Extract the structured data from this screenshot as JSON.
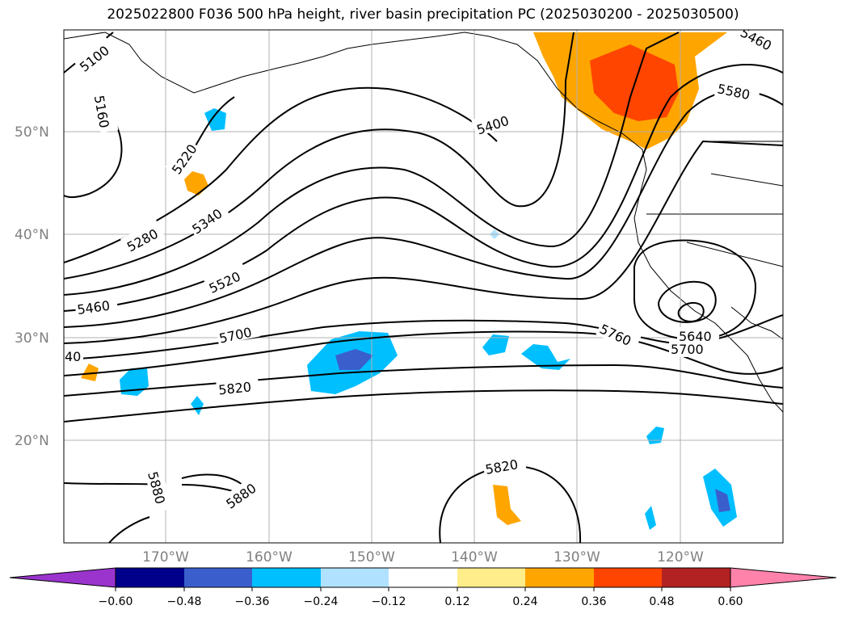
{
  "title": "2025022800 F036 500 hPa height, river basin precipitation PC (2025030200 - 2025030500)",
  "map": {
    "lat_labels": [
      "50°N",
      "40°N",
      "30°N",
      "20°N"
    ],
    "lon_labels": [
      "170°W",
      "160°W",
      "150°W",
      "140°W",
      "130°W",
      "120°W"
    ],
    "contour_labels": [
      "5100",
      "5160",
      "5220",
      "5280",
      "5340",
      "5400",
      "5460",
      "5520",
      "5580",
      "5640",
      "5700",
      "5760",
      "5820",
      "5880",
      "5460",
      "5700",
      "5880",
      "5820",
      "40"
    ],
    "colors": {
      "coast": "#000000",
      "grid": "#b0b0b0",
      "contour": "#000000"
    }
  },
  "colorbar": {
    "ticks": [
      "−0.60",
      "−0.48",
      "−0.36",
      "−0.24",
      "−0.12",
      "0.12",
      "0.24",
      "0.36",
      "0.48",
      "0.60"
    ],
    "colors": [
      "#9a34cd",
      "#00008b",
      "#3a5fcd",
      "#00bfff",
      "#b0e2ff",
      "#ffffff",
      "#ffec8b",
      "#ffa500",
      "#ff4500",
      "#b22222",
      "#ff82ab"
    ]
  }
}
